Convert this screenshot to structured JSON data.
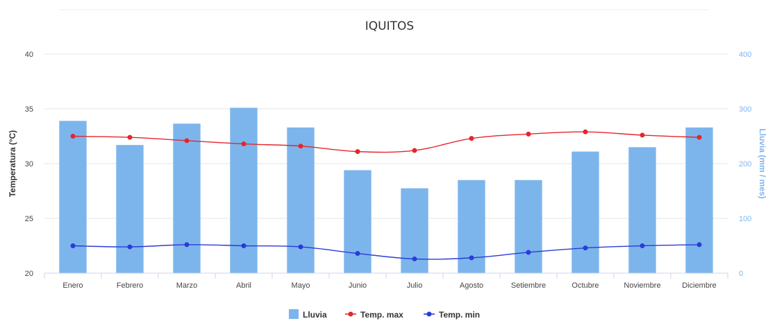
{
  "chart_data": {
    "type": "bar",
    "title": "IQUITOS",
    "categories": [
      "Enero",
      "Febrero",
      "Marzo",
      "Abril",
      "Mayo",
      "Junio",
      "Julio",
      "Agosto",
      "Setiembre",
      "Octubre",
      "Noviembre",
      "Diciembre"
    ],
    "y_left": {
      "label": "Temperatura (°C)",
      "ylim": [
        20,
        40
      ],
      "ticks": [
        20,
        25,
        30,
        35,
        40
      ]
    },
    "y_right": {
      "label": "Lluvia (mm / mes)",
      "ylim": [
        0,
        400
      ],
      "ticks": [
        0,
        100,
        200,
        300,
        400
      ]
    },
    "series": [
      {
        "name": "Lluvia",
        "kind": "bar",
        "axis": "right",
        "color": "#7cb5ec",
        "values": [
          278,
          234,
          273,
          302,
          266,
          188,
          155,
          170,
          170,
          222,
          230,
          266
        ]
      },
      {
        "name": "Temp. max",
        "kind": "line",
        "axis": "left",
        "color": "#e4262c",
        "values": [
          32.5,
          32.4,
          32.1,
          31.8,
          31.6,
          31.1,
          31.2,
          32.3,
          32.7,
          32.9,
          32.6,
          32.4
        ]
      },
      {
        "name": "Temp. min",
        "kind": "line",
        "axis": "left",
        "color": "#2b3bd6",
        "values": [
          22.5,
          22.4,
          22.6,
          22.5,
          22.4,
          21.8,
          21.3,
          21.4,
          21.9,
          22.3,
          22.5,
          22.6
        ]
      }
    ],
    "grid": true,
    "legend": "bottom-center"
  }
}
